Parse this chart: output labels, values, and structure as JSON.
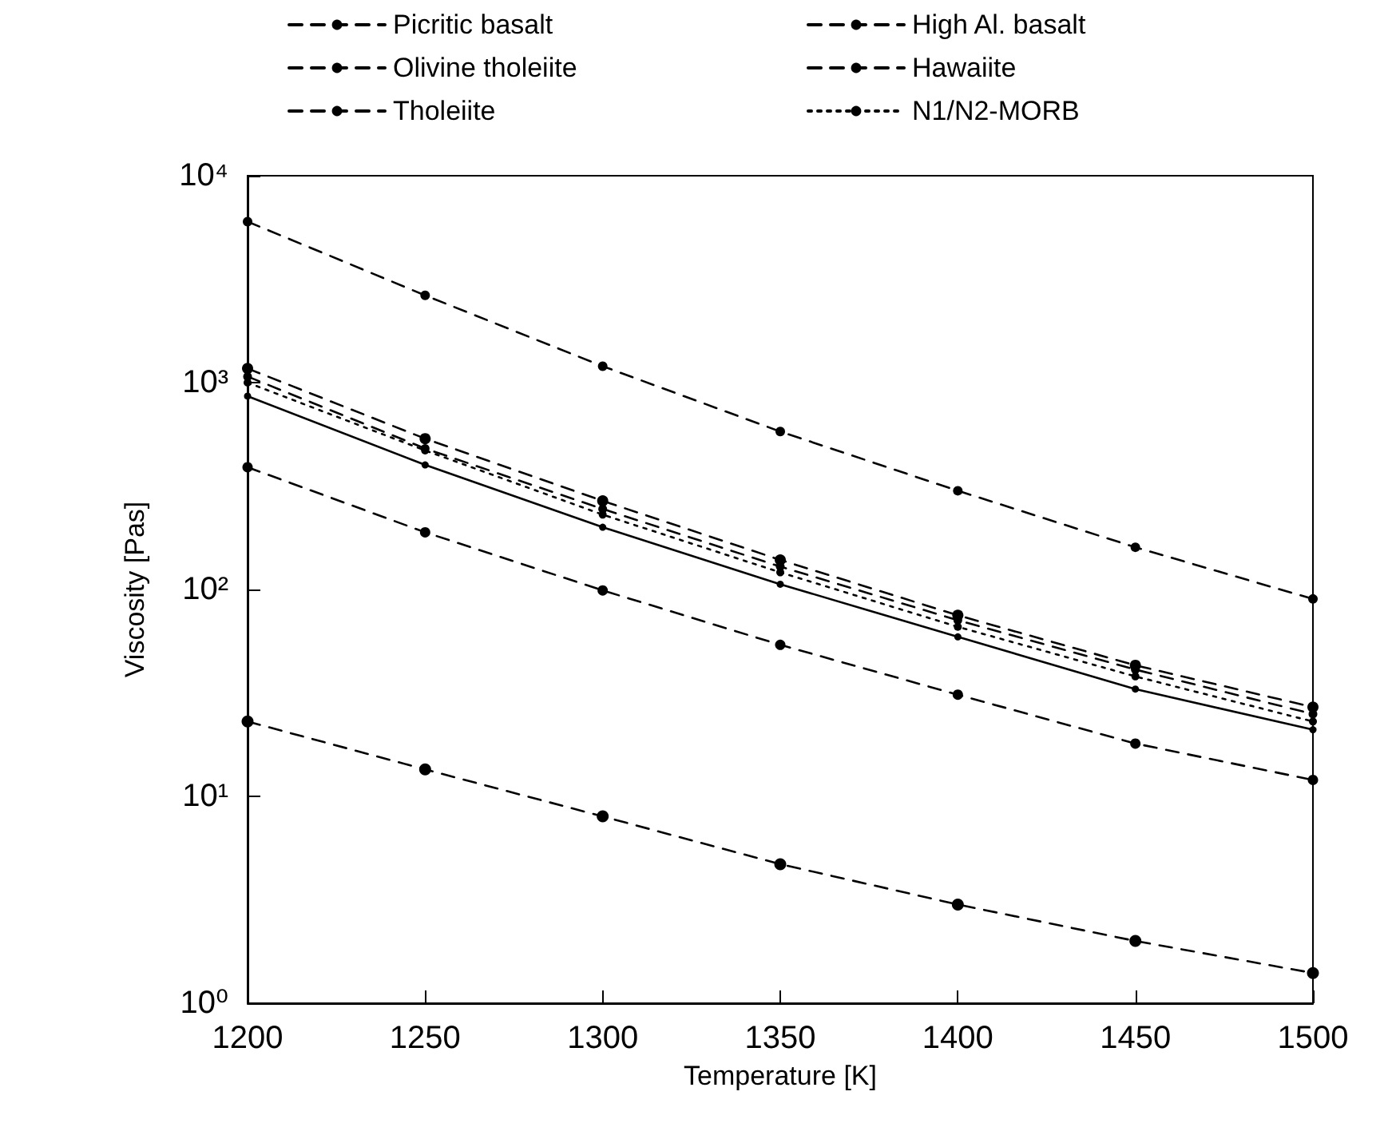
{
  "chart_data": {
    "type": "line",
    "xlabel": "Temperature [K]",
    "ylabel": "Viscosity [Pas]",
    "x": [
      1200,
      1250,
      1300,
      1350,
      1400,
      1450,
      1500
    ],
    "series": [
      {
        "name": "Picritic basalt",
        "color": "#000000",
        "line_style": "dashed",
        "values": [
          23,
          13.5,
          8,
          4.7,
          3.0,
          2.0,
          1.4
        ]
      },
      {
        "name": "High Al. basalt",
        "color": "#000000",
        "line_style": "dashed",
        "values": [
          1170,
          536,
          268,
          139,
          75,
          43,
          27
        ]
      },
      {
        "name": "Olivine tholeiite",
        "color": "#000000",
        "line_style": "dashed",
        "values": [
          390,
          189,
          99,
          54,
          31,
          18,
          12
        ]
      },
      {
        "name": "Hawaiite",
        "color": "#000000",
        "line_style": "dashed",
        "values": [
          6000,
          2640,
          1200,
          580,
          300,
          160,
          90
        ]
      },
      {
        "name": "Tholeiite",
        "color": "#000000",
        "line_style": "dashed",
        "values": [
          1070,
          480,
          245,
          129,
          71,
          41,
          25
        ]
      },
      {
        "name": "N1/N2-MORB",
        "color": "#000000",
        "line_style": "dotted",
        "values": [
          1000,
          470,
          230,
          121,
          66,
          38,
          23
        ]
      },
      {
        "color": "#000000",
        "line_style": "solid",
        "values": [
          860,
          400,
          200,
          106,
          59,
          33,
          21
        ]
      }
    ],
    "xlim": [
      1200,
      1500
    ],
    "xticks": [
      1200,
      1250,
      1300,
      1350,
      1400,
      1450,
      1500
    ],
    "ylim": [
      1,
      10000
    ],
    "log": true,
    "yticks": [
      {
        "value": 1,
        "label": "10⁰"
      },
      {
        "value": 10,
        "label": "10¹"
      },
      {
        "value": 100,
        "label": "10²"
      },
      {
        "value": 1000,
        "label": "10³"
      },
      {
        "value": 10000,
        "label": "10⁴"
      }
    ],
    "grid": false,
    "legend": "top",
    "marker": "circle"
  }
}
